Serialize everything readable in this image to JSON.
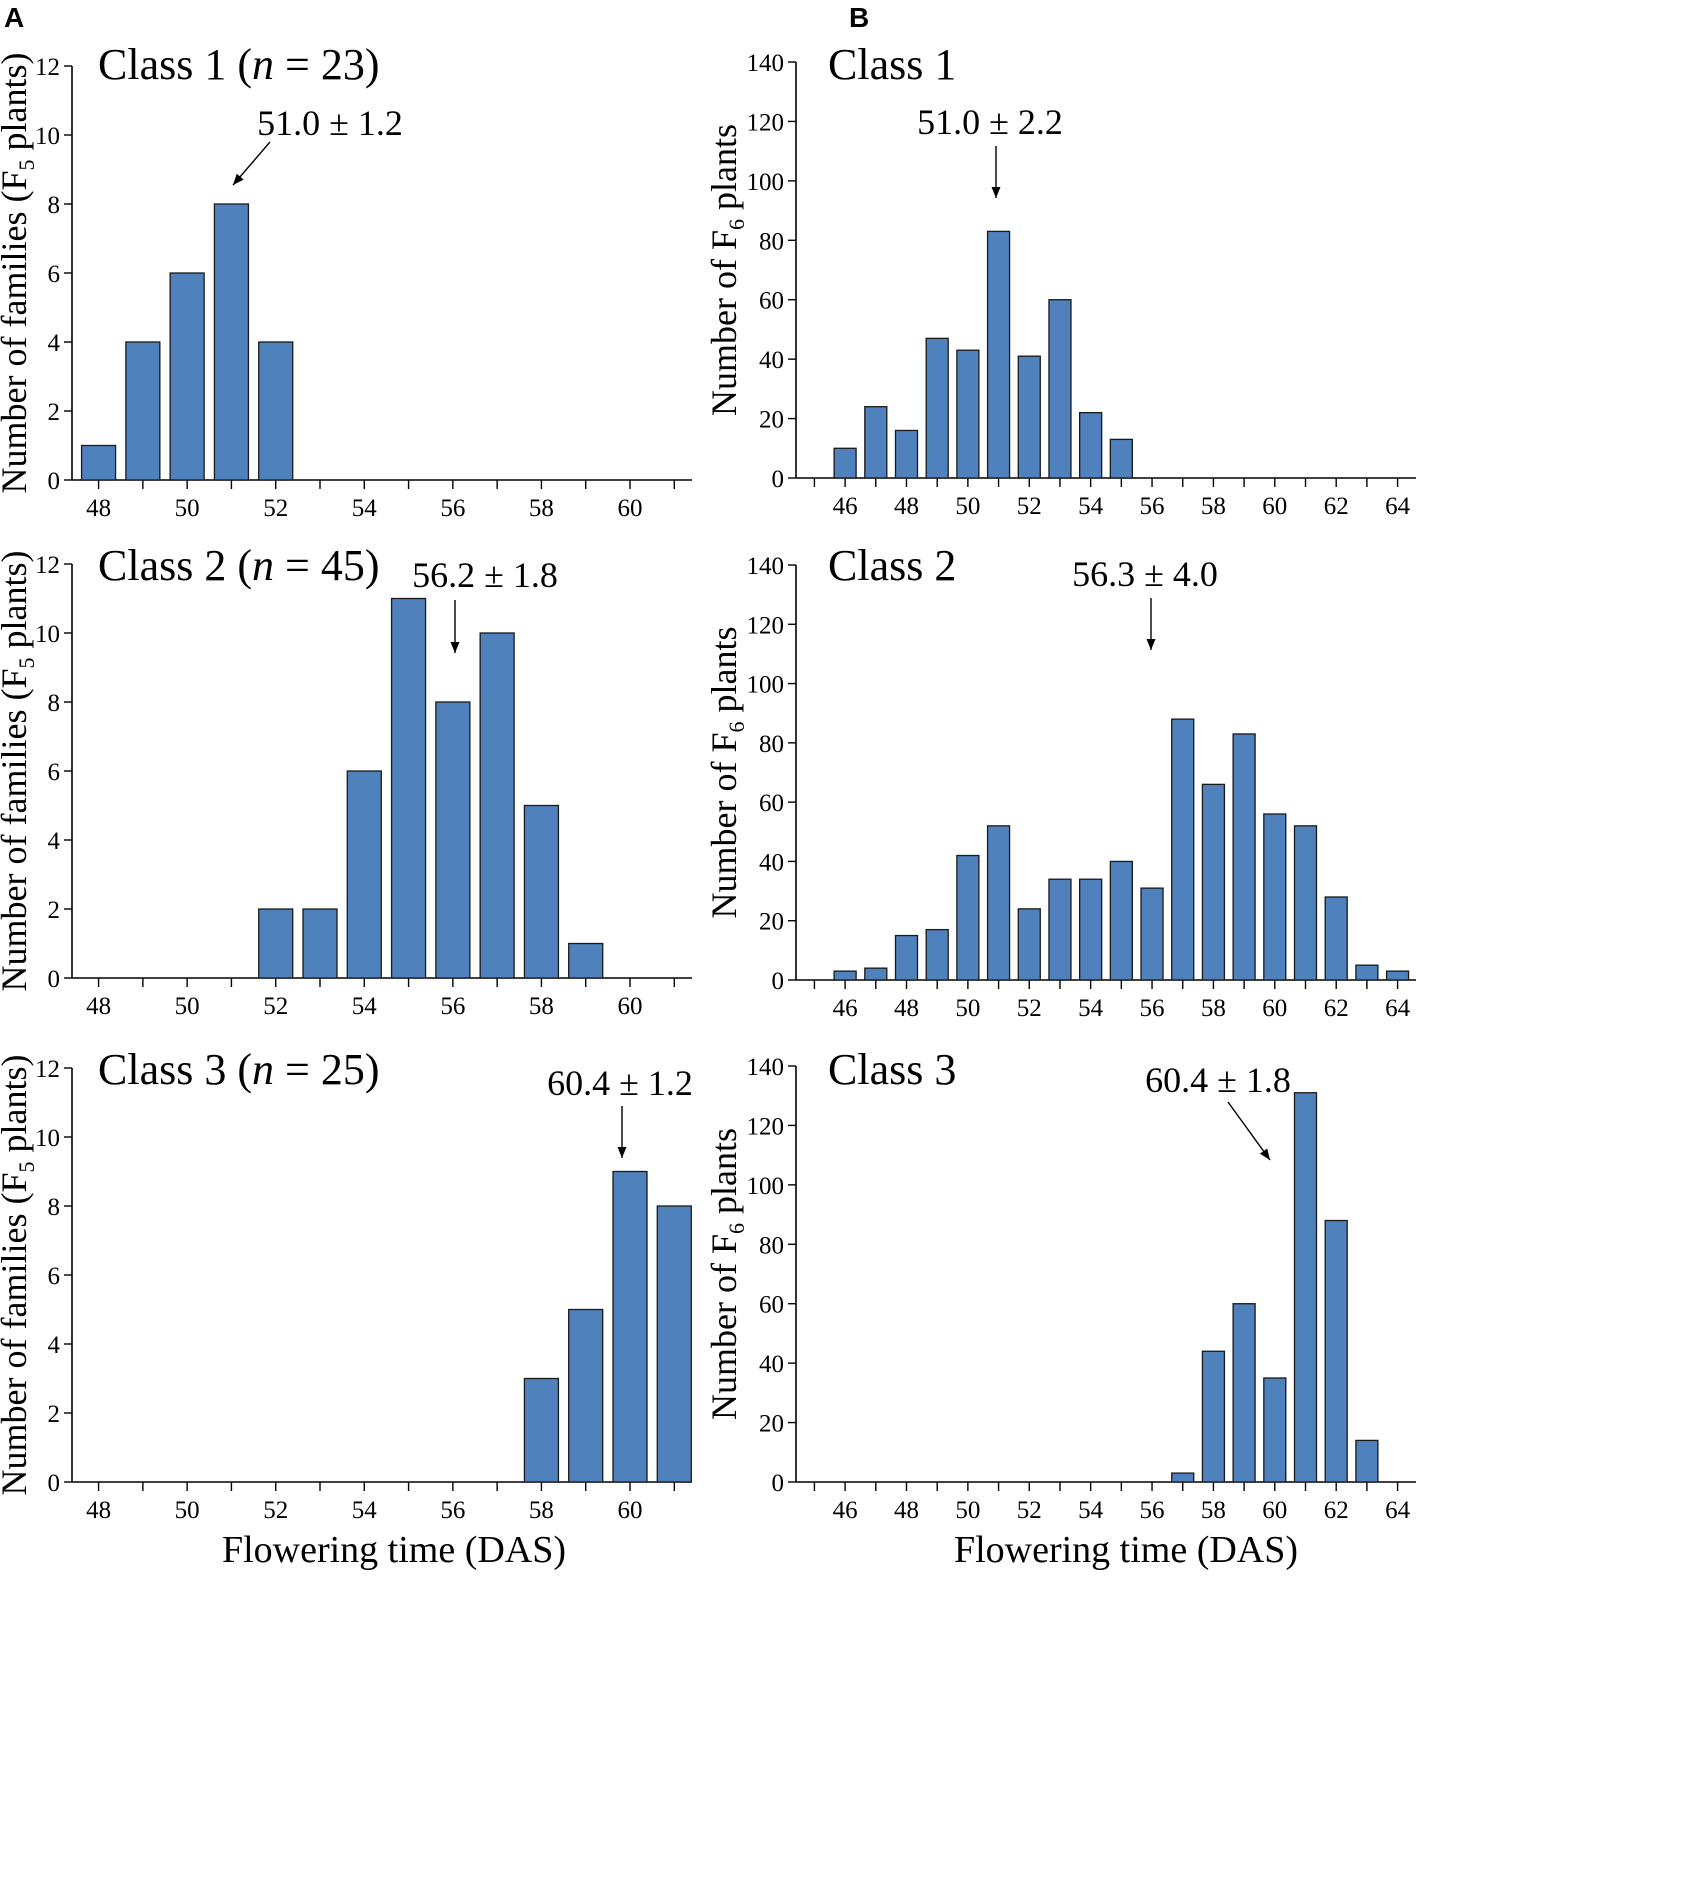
{
  "figure": {
    "panel_labels": [
      "A",
      "B"
    ]
  },
  "chart_data": [
    {
      "type": "bar",
      "panel": "A",
      "title": "Class 1 (",
      "title_italic": "n",
      "title_suffix": " = 23)",
      "ylabel": "Number of families (F",
      "ylabel_sub": "5",
      "ylabel_suffix": " plants)",
      "xlabel": "",
      "x": [
        48,
        49,
        50,
        51,
        52
      ],
      "values": [
        1,
        4,
        6,
        8,
        4
      ],
      "xlim": [
        47.4,
        61.4
      ],
      "ylim": [
        0,
        12
      ],
      "xticks": [
        48,
        50,
        52,
        54,
        56,
        58,
        60
      ],
      "yticks": [
        0,
        2,
        4,
        6,
        8,
        10,
        12
      ],
      "color": "#4f81bd",
      "annotation": {
        "text": "51.0 ± 1.2",
        "x": 51,
        "y": 8
      }
    },
    {
      "type": "bar",
      "panel": "A",
      "title": "Class 2 (",
      "title_italic": "n",
      "title_suffix": " = 45)",
      "ylabel": "Number of families (F",
      "ylabel_sub": "5",
      "ylabel_suffix": " plants)",
      "xlabel": "",
      "x": [
        52,
        53,
        54,
        55,
        56,
        57,
        58,
        59
      ],
      "values": [
        2,
        2,
        6,
        11,
        8,
        10,
        5,
        1
      ],
      "xlim": [
        47.4,
        61.4
      ],
      "ylim": [
        0,
        12
      ],
      "xticks": [
        48,
        50,
        52,
        54,
        56,
        58,
        60
      ],
      "yticks": [
        0,
        2,
        4,
        6,
        8,
        10,
        12
      ],
      "color": "#4f81bd",
      "annotation": {
        "text": "56.2 ± 1.8",
        "x": 56.2,
        "y": 9.5
      }
    },
    {
      "type": "bar",
      "panel": "A",
      "title": "Class 3 (",
      "title_italic": "n",
      "title_suffix": " = 25)",
      "ylabel": "Number of families (F",
      "ylabel_sub": "5",
      "ylabel_suffix": " plants)",
      "xlabel": "Flowering time (DAS)",
      "x": [
        58,
        59,
        60,
        61
      ],
      "values": [
        3,
        5,
        9,
        8
      ],
      "xlim": [
        47.4,
        61.4
      ],
      "ylim": [
        0,
        12
      ],
      "xticks": [
        48,
        50,
        52,
        54,
        56,
        58,
        60
      ],
      "yticks": [
        0,
        2,
        4,
        6,
        8,
        10,
        12
      ],
      "color": "#4f81bd",
      "annotation": {
        "text": "60.4 ± 1.2",
        "x": 60,
        "y": 9
      }
    },
    {
      "type": "bar",
      "panel": "B",
      "title": "Class 1",
      "title_italic": "",
      "title_suffix": "",
      "ylabel": "Number of F",
      "ylabel_sub": "6",
      "ylabel_suffix": " plants",
      "xlabel": "",
      "x": [
        46,
        47,
        48,
        49,
        50,
        51,
        52,
        53,
        54,
        55
      ],
      "values": [
        10,
        24,
        16,
        47,
        43,
        83,
        41,
        60,
        22,
        13
      ],
      "xlim": [
        44.4,
        64.6
      ],
      "ylim": [
        0,
        140
      ],
      "xticks": [
        46,
        48,
        50,
        52,
        54,
        56,
        58,
        60,
        62,
        64
      ],
      "yticks": [
        0,
        20,
        40,
        60,
        80,
        100,
        120,
        140
      ],
      "color": "#4f81bd",
      "annotation": {
        "text": "51.0 ± 2.2",
        "x": 51,
        "y": 95
      }
    },
    {
      "type": "bar",
      "panel": "B",
      "title": "Class 2",
      "title_italic": "",
      "title_suffix": "",
      "ylabel": "Number of F",
      "ylabel_sub": "6",
      "ylabel_suffix": " plants",
      "xlabel": "",
      "x": [
        46,
        47,
        48,
        49,
        50,
        51,
        52,
        53,
        54,
        55,
        56,
        57,
        58,
        59,
        60,
        61,
        62,
        63,
        64
      ],
      "values": [
        3,
        4,
        15,
        17,
        42,
        52,
        24,
        34,
        34,
        40,
        31,
        88,
        66,
        83,
        56,
        52,
        28,
        5,
        3
      ],
      "xlim": [
        44.4,
        64.6
      ],
      "ylim": [
        0,
        140
      ],
      "xticks": [
        46,
        48,
        50,
        52,
        54,
        56,
        58,
        60,
        62,
        64
      ],
      "yticks": [
        0,
        20,
        40,
        60,
        80,
        100,
        120,
        140
      ],
      "color": "#4f81bd",
      "annotation": {
        "text": "56.3 ± 4.0",
        "x": 56.3,
        "y": 110
      }
    },
    {
      "type": "bar",
      "panel": "B",
      "title": "Class 3",
      "title_italic": "",
      "title_suffix": "",
      "ylabel": "Number of F",
      "ylabel_sub": "6",
      "ylabel_suffix": " plants",
      "xlabel": "Flowering time (DAS)",
      "x": [
        57,
        58,
        59,
        60,
        61,
        62,
        63
      ],
      "values": [
        3,
        44,
        60,
        35,
        131,
        88,
        14
      ],
      "xlim": [
        44.4,
        64.6
      ],
      "ylim": [
        0,
        140
      ],
      "xticks": [
        46,
        48,
        50,
        52,
        54,
        56,
        58,
        60,
        62,
        64
      ],
      "yticks": [
        0,
        20,
        40,
        60,
        80,
        100,
        120,
        140
      ],
      "color": "#4f81bd",
      "annotation": {
        "text": "60.4 ± 1.8",
        "x": 60.4,
        "y": 110
      }
    }
  ]
}
